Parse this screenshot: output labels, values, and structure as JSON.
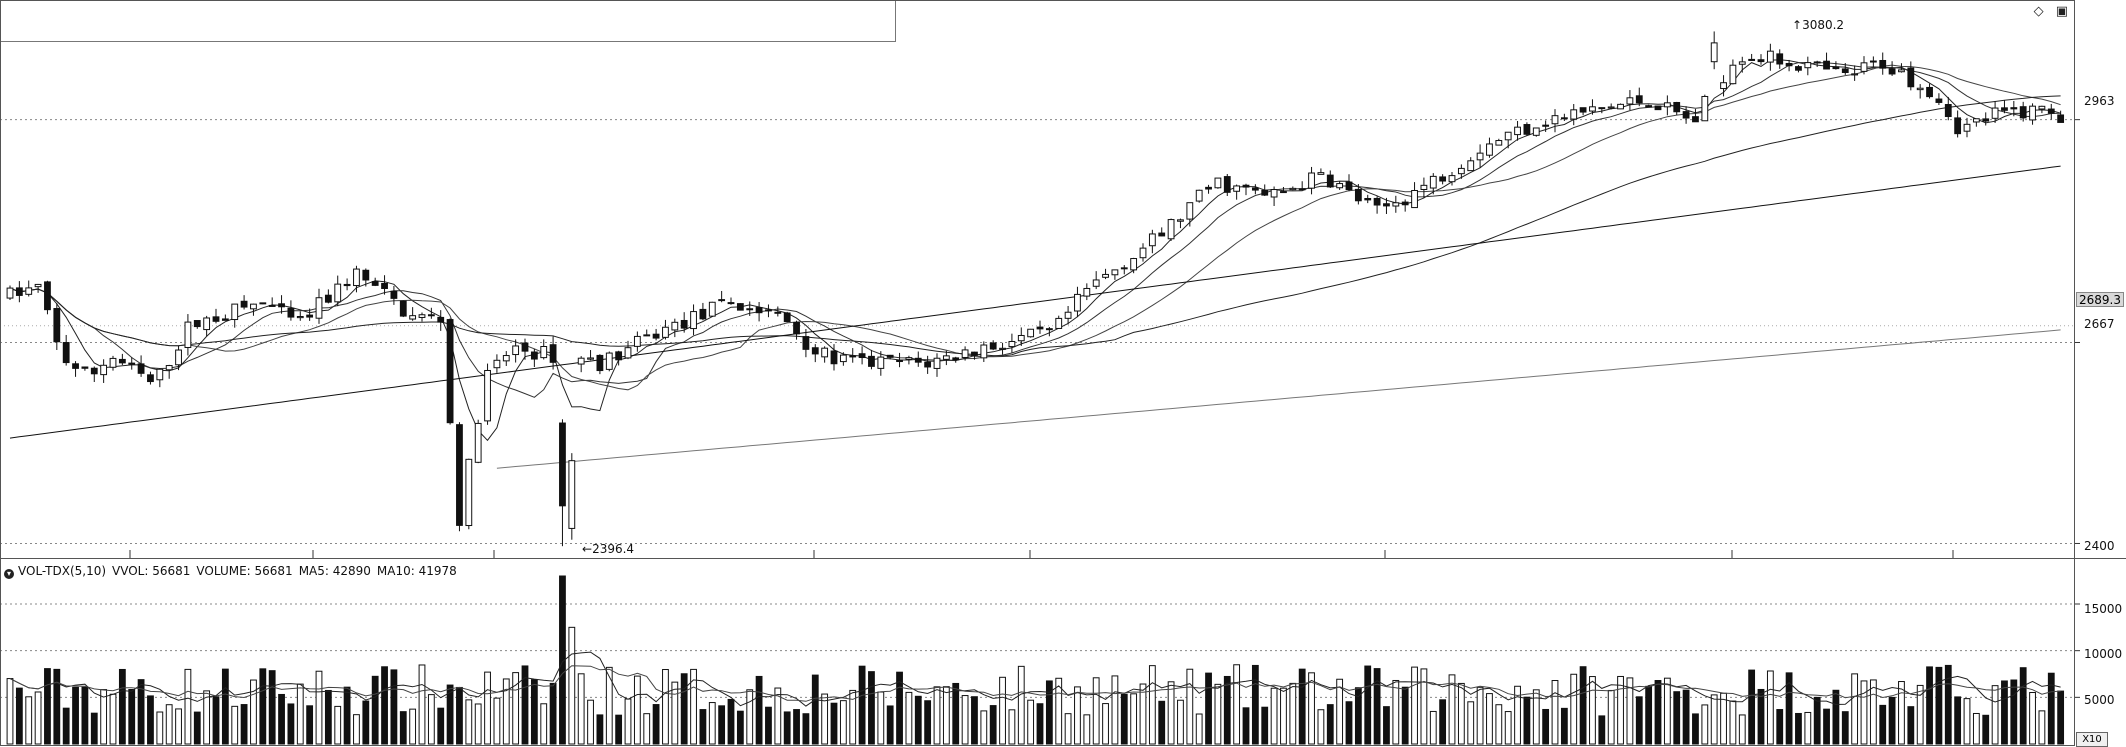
{
  "price_axis": {
    "labels": [
      "2963",
      "2667",
      "2400"
    ],
    "values": [
      2963,
      2667,
      2400
    ],
    "current_tag": "2689.3",
    "current_value": 2689.3
  },
  "annotations": {
    "high_label": "3080.2",
    "high_value": 3080.2,
    "low_label": "2396.4",
    "low_value": 2396.4
  },
  "indicator": {
    "name": "VOL-TDX(5,10)",
    "vvol": "VVOL: 56681",
    "volume": "VOLUME: 56681",
    "ma5": "MA5: 42890",
    "ma10": "MA10: 41978",
    "scale": "X10"
  },
  "volume_axis": {
    "labels": [
      "15000",
      "10000",
      "5000"
    ],
    "values": [
      15000,
      10000,
      5000
    ]
  },
  "icons": [
    "diamond-icon",
    "window-icon",
    "indicator-dot-icon"
  ],
  "chart_data": [
    {
      "type": "candlestick",
      "ylim": [
        2390,
        3110
      ],
      "grid": "dotted",
      "count": 220,
      "ohlc": "see script-generated series",
      "moving_averages": [
        "MA5",
        "MA10",
        "MA20",
        "MA60",
        "MA120",
        "MA250"
      ]
    },
    {
      "type": "bar",
      "name": "VOL-TDX(5,10)",
      "ylim": [
        0,
        18000
      ],
      "series": [
        {
          "name": "MA5",
          "value": 42890
        },
        {
          "name": "MA10",
          "value": 41978
        }
      ],
      "latest": 56681
    }
  ]
}
